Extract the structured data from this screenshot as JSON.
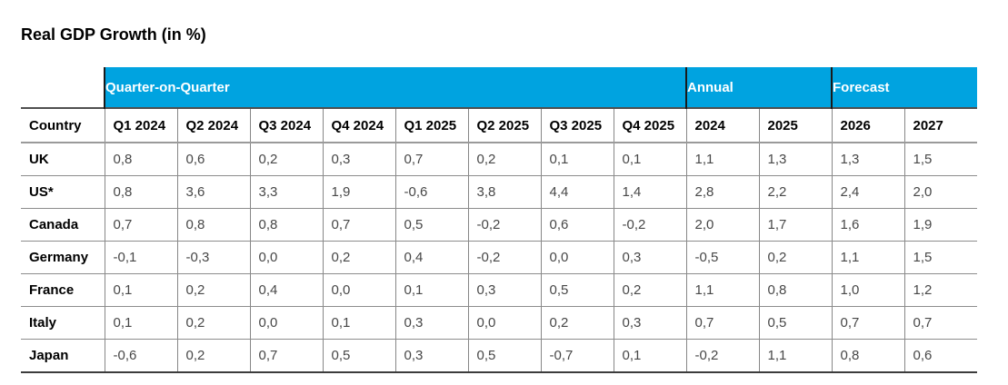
{
  "colors": {
    "band_blue": "#00A3E0",
    "band_text": "#FFFFFF",
    "group_separator": "#1A1A1A",
    "grid_gray": "#8C8C8C"
  },
  "chart_data": {
    "type": "table",
    "title": "Real GDP Growth (in %)",
    "column_groups": [
      {
        "label": "Quarter-on-Quarter",
        "span": 8
      },
      {
        "label": "Annual",
        "span": 2
      },
      {
        "label": "Forecast",
        "span": 2
      }
    ],
    "columns": [
      "Country",
      "Q1 2024",
      "Q2 2024",
      "Q3 2024",
      "Q4 2024",
      "Q1 2025",
      "Q2 2025",
      "Q3 2025",
      "Q4 2025",
      "2024",
      "2025",
      "2026",
      "2027"
    ],
    "rows": [
      {
        "country": "UK",
        "cells": [
          "0,8",
          "0,6",
          "0,2",
          "0,3",
          "0,7",
          "0,2",
          "0,1",
          "0,1",
          "1,1",
          "1,3",
          "1,3",
          "1,5"
        ]
      },
      {
        "country": "US*",
        "cells": [
          "0,8",
          "3,6",
          "3,3",
          "1,9",
          "-0,6",
          "3,8",
          "4,4",
          "1,4",
          "2,8",
          "2,2",
          "2,4",
          "2,0"
        ]
      },
      {
        "country": "Canada",
        "cells": [
          "0,7",
          "0,8",
          "0,8",
          "0,7",
          "0,5",
          "-0,2",
          "0,6",
          "-0,2",
          "2,0",
          "1,7",
          "1,6",
          "1,9"
        ]
      },
      {
        "country": "Germany",
        "cells": [
          "-0,1",
          "-0,3",
          "0,0",
          "0,2",
          "0,4",
          "-0,2",
          "0,0",
          "0,3",
          "-0,5",
          "0,2",
          "1,1",
          "1,5"
        ]
      },
      {
        "country": "France",
        "cells": [
          "0,1",
          "0,2",
          "0,4",
          "0,0",
          "0,1",
          "0,3",
          "0,5",
          "0,2",
          "1,1",
          "0,8",
          "1,0",
          "1,2"
        ]
      },
      {
        "country": "Italy",
        "cells": [
          "0,1",
          "0,2",
          "0,0",
          "0,1",
          "0,3",
          "0,0",
          "0,2",
          "0,3",
          "0,7",
          "0,5",
          "0,7",
          "0,7"
        ]
      },
      {
        "country": "Japan",
        "cells": [
          "-0,6",
          "0,2",
          "0,7",
          "0,5",
          "0,3",
          "0,5",
          "-0,7",
          "0,1",
          "-0,2",
          "1,1",
          "0,8",
          "0,6"
        ]
      }
    ]
  }
}
